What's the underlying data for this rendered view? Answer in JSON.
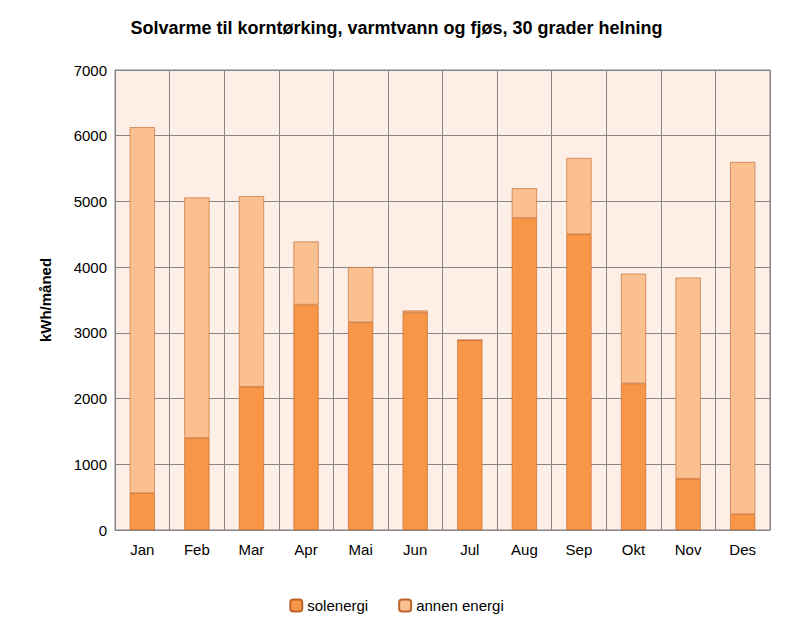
{
  "chart_data": {
    "type": "bar",
    "title": "Solvarme til korntørking, varmtvann og fjøs, 30 grader helning",
    "y_label": "kWh/måned",
    "categories": [
      "Jan",
      "Feb",
      "Mar",
      "Apr",
      "Mai",
      "Jun",
      "Jul",
      "Aug",
      "Sep",
      "Okt",
      "Nov",
      "Des"
    ],
    "series": [
      {
        "name": "solenergi",
        "color": "#f79646",
        "values": [
          560,
          1400,
          2180,
          3430,
          3160,
          3310,
          2890,
          4750,
          4500,
          2230,
          780,
          240
        ]
      },
      {
        "name": "annen energi",
        "color": "#fac090",
        "values": [
          5570,
          3660,
          2900,
          960,
          840,
          30,
          0,
          450,
          1160,
          1670,
          3060,
          5360
        ]
      }
    ],
    "stacked": true,
    "ylim": [
      0,
      7000
    ],
    "yticks": [
      0,
      1000,
      2000,
      3000,
      4000,
      5000,
      6000,
      7000
    ],
    "grid": true,
    "legend": "bottom"
  }
}
